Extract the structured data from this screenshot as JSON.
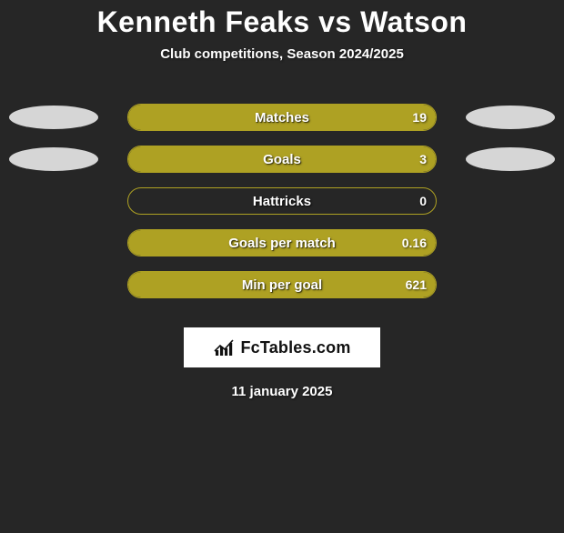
{
  "colors": {
    "background": "#262626",
    "series_left": "#aea123",
    "series_right": "#d4cf8f",
    "avatar_left": "#d6d6d6",
    "avatar_right": "#d6d6d6",
    "logo_bg": "#ffffff",
    "logo_text": "#111111",
    "text": "#ffffff"
  },
  "header": {
    "title": "Kenneth Feaks vs Watson",
    "subtitle": "Club competitions, Season 2024/2025"
  },
  "avatars": {
    "left_rows": [
      0,
      1
    ],
    "right_rows": [
      0,
      1
    ]
  },
  "stats": [
    {
      "label": "Matches",
      "value": "19",
      "fill_pct": 100
    },
    {
      "label": "Goals",
      "value": "3",
      "fill_pct": 100
    },
    {
      "label": "Hattricks",
      "value": "0",
      "fill_pct": 0
    },
    {
      "label": "Goals per match",
      "value": "0.16",
      "fill_pct": 100
    },
    {
      "label": "Min per goal",
      "value": "621",
      "fill_pct": 100
    }
  ],
  "logo": {
    "text": "FcTables.com",
    "icon": "bar-chart-icon"
  },
  "footer": {
    "date": "11 january 2025"
  }
}
